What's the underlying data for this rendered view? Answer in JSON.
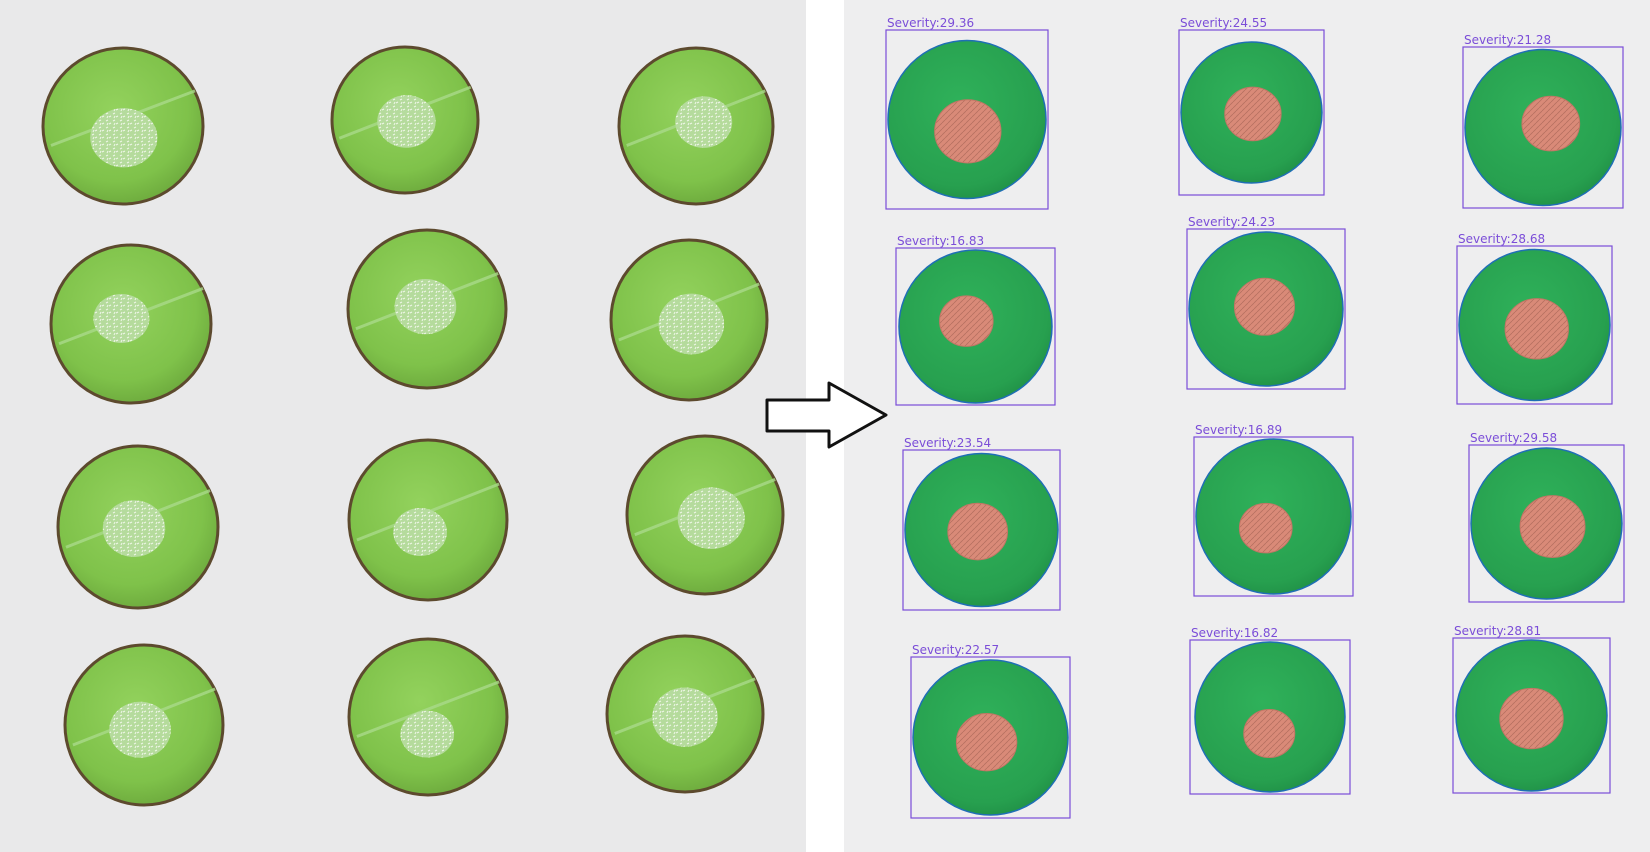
{
  "figure": {
    "left_panel": {
      "content": "original leaf discs",
      "rows": 4,
      "columns": 3
    },
    "arrow": {
      "direction": "right"
    },
    "right_panel": {
      "content": "segmented leaf discs",
      "leaf_color": "#2aa24f",
      "lesion_color": "#d98a78",
      "box_color": "#7b4dd8",
      "samples": [
        {
          "label": "Severity:29.36",
          "severity": 29.36
        },
        {
          "label": "Severity:24.55",
          "severity": 24.55
        },
        {
          "label": "Severity:21.28",
          "severity": 21.28
        },
        {
          "label": "Severity:16.83",
          "severity": 16.83
        },
        {
          "label": "Severity:24.23",
          "severity": 24.23
        },
        {
          "label": "Severity:28.68",
          "severity": 28.68
        },
        {
          "label": "Severity:23.54",
          "severity": 23.54
        },
        {
          "label": "Severity:16.89",
          "severity": 16.89
        },
        {
          "label": "Severity:29.58",
          "severity": 29.58
        },
        {
          "label": "Severity:22.57",
          "severity": 22.57
        },
        {
          "label": "Severity:16.82",
          "severity": 16.82
        },
        {
          "label": "Severity:28.81",
          "severity": 28.81
        }
      ]
    }
  }
}
